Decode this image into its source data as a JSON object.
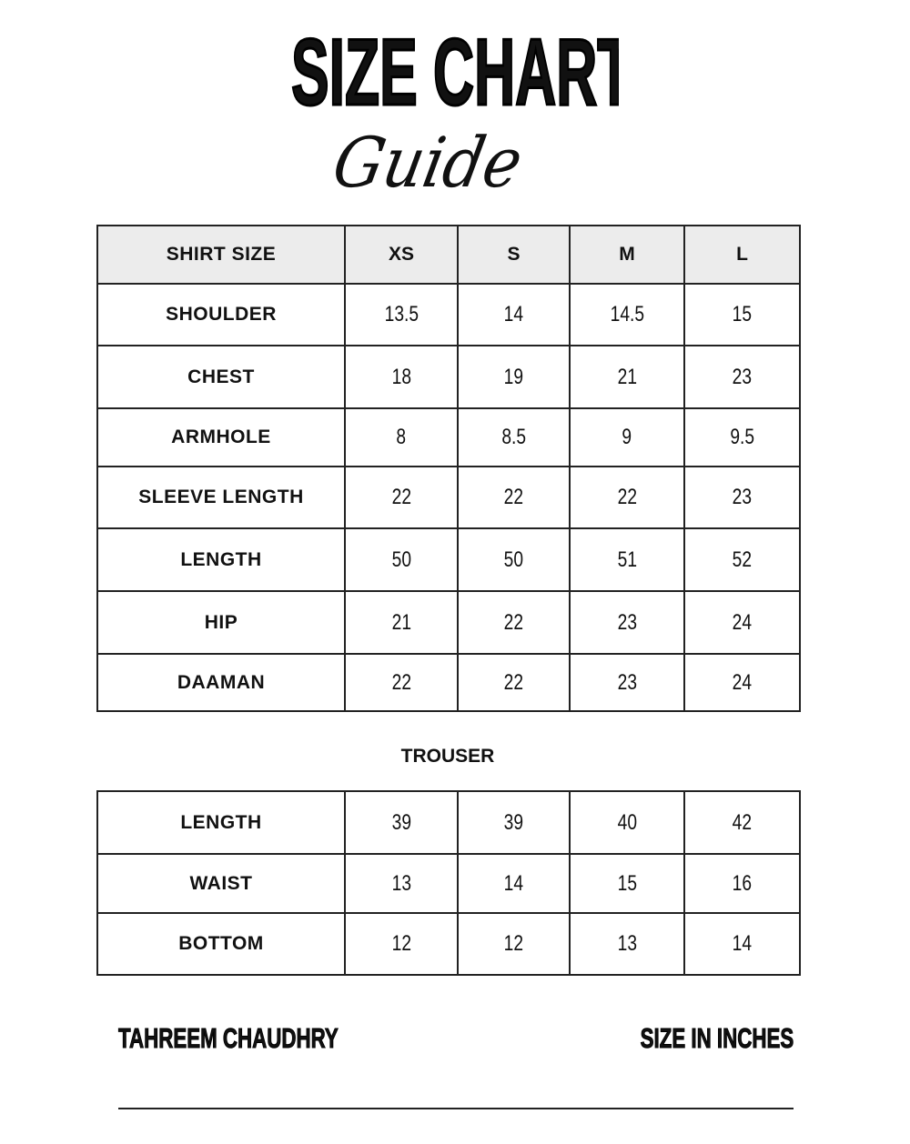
{
  "header": {
    "title": "SIZE CHART",
    "subtitle": "Guide"
  },
  "shirt_table": {
    "columns": [
      "SHIRT SIZE",
      "XS",
      "S",
      "M",
      "L"
    ],
    "rows": [
      {
        "label": "SHOULDER",
        "values": [
          "13.5",
          "14",
          "14.5",
          "15"
        ]
      },
      {
        "label": "CHEST",
        "values": [
          "18",
          "19",
          "21",
          "23"
        ]
      },
      {
        "label": "ARMHOLE",
        "values": [
          "8",
          "8.5",
          "9",
          "9.5"
        ]
      },
      {
        "label": "SLEEVE LENGTH",
        "values": [
          "22",
          "22",
          "22",
          "23"
        ]
      },
      {
        "label": "LENGTH",
        "values": [
          "50",
          "50",
          "51",
          "52"
        ]
      },
      {
        "label": "HIP",
        "values": [
          "21",
          "22",
          "23",
          "24"
        ]
      },
      {
        "label": "DAAMAN",
        "values": [
          "22",
          "22",
          "23",
          "24"
        ]
      }
    ]
  },
  "trouser_table": {
    "title": "TROUSER",
    "rows": [
      {
        "label": "LENGTH",
        "values": [
          "39",
          "39",
          "40",
          "42"
        ]
      },
      {
        "label": "WAIST",
        "values": [
          "13",
          "14",
          "15",
          "16"
        ]
      },
      {
        "label": "BOTTOM",
        "values": [
          "12",
          "12",
          "13",
          "14"
        ]
      }
    ]
  },
  "footer": {
    "brand": "TAHREEM CHAUDHRY",
    "unit_note": "SIZE IN INCHES"
  }
}
